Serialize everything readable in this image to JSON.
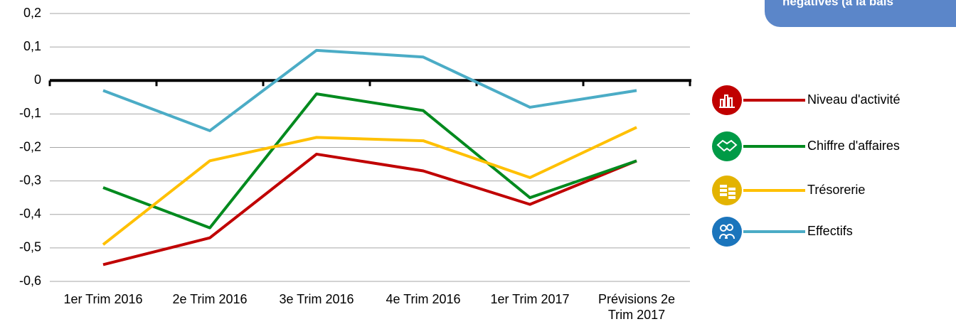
{
  "chart_data": {
    "type": "line",
    "annotation": "négatives (à la bais",
    "categories": [
      "1er Trim 2016",
      "2e Trim 2016",
      "3e Trim 2016",
      "4e Trim 2016",
      "1er Trim 2017",
      "Prévisions 2e Trim 2017"
    ],
    "series": [
      {
        "name": "Niveau d'activité",
        "color": "#c00000",
        "values": [
          -0.55,
          -0.47,
          -0.22,
          -0.27,
          -0.37,
          -0.24
        ]
      },
      {
        "name": "Chiffre d'affaires",
        "color": "#008a1e",
        "values": [
          -0.32,
          -0.44,
          -0.04,
          -0.09,
          -0.35,
          -0.24
        ]
      },
      {
        "name": "Trésorerie",
        "color": "#ffc000",
        "values": [
          -0.49,
          -0.24,
          -0.17,
          -0.18,
          -0.29,
          -0.14
        ]
      },
      {
        "name": "Effectifs",
        "color": "#4bacc6",
        "values": [
          -0.03,
          -0.15,
          0.09,
          0.07,
          -0.08,
          -0.03
        ]
      }
    ],
    "ylim": [
      -0.6,
      0.2
    ],
    "yticks": [
      {
        "value": -0.6,
        "label": "-0,6"
      },
      {
        "value": -0.5,
        "label": "-0,5"
      },
      {
        "value": -0.4,
        "label": "-0,4"
      },
      {
        "value": -0.3,
        "label": "-0,3"
      },
      {
        "value": -0.2,
        "label": "-0,2"
      },
      {
        "value": -0.1,
        "label": "-0,1"
      },
      0,
      {
        "value": 0.1,
        "label": "0,1"
      },
      {
        "value": 0.2,
        "label": "0,2"
      }
    ],
    "grid": true
  }
}
